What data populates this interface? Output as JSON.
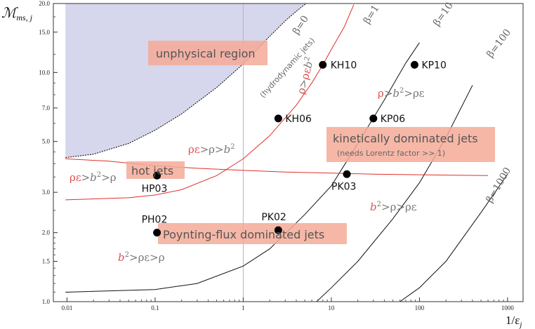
{
  "chart_data": {
    "type": "line",
    "title": "",
    "xlabel": "1/ε",
    "xlabel_sub": "j",
    "ylabel": "ℳ",
    "ylabel_sub": "ms, j",
    "xscale": "log",
    "yscale": "log",
    "xlim": [
      0.007,
      1500
    ],
    "ylim": [
      1.0,
      20.0
    ],
    "x_ticks": [
      "0.01",
      "0.1",
      "1",
      "10",
      "100",
      "1000"
    ],
    "y_ticks": [
      "1.0",
      "1.5",
      "2.0",
      "3.0",
      "5.0",
      "7.0",
      "10.0",
      "15.0",
      "20.0"
    ],
    "colors": {
      "unphysical_fill": "#d6d6ec",
      "red_curve": "#e0302a",
      "black_curve": "#111111",
      "label_box": "#f4aa98",
      "point": "#000000"
    },
    "series": [
      {
        "name": "β=0 (hydrodynamic jets)",
        "color": "#000000",
        "x": [
          0.0096,
          0.02,
          0.05,
          0.1,
          0.2,
          0.5,
          1,
          2,
          3,
          4,
          5,
          6
        ],
        "y": [
          4.25,
          4.4,
          4.9,
          5.6,
          6.6,
          8.6,
          10.9,
          14.4,
          16.8,
          18.5,
          19.8,
          20.5
        ]
      },
      {
        "name": "β=1",
        "color": "#e0302a",
        "x": [
          0.0096,
          0.05,
          0.1,
          0.2,
          0.5,
          1,
          2,
          4,
          6,
          8,
          10,
          14,
          18
        ],
        "y": [
          2.78,
          2.84,
          2.92,
          3.08,
          3.55,
          4.2,
          5.3,
          7.2,
          9.0,
          10.8,
          12.6,
          15.8,
          19.8
        ]
      },
      {
        "name": "β=10",
        "color": "#111111",
        "x": [
          0.0096,
          0.1,
          0.3,
          1,
          2,
          5,
          10,
          20,
          40,
          70,
          100
        ],
        "y": [
          1.1,
          1.13,
          1.2,
          1.43,
          1.7,
          2.4,
          3.2,
          4.9,
          7.6,
          11.0,
          13.5
        ]
      },
      {
        "name": "β=100",
        "color": "#111111",
        "x": [
          6.8,
          10,
          20,
          50,
          100,
          200,
          400
        ],
        "y": [
          1.0,
          1.15,
          1.5,
          2.3,
          3.3,
          5.2,
          8.8
        ]
      },
      {
        "name": "β=1000",
        "color": "#111111",
        "x": [
          60,
          100,
          200,
          500,
          1000
        ],
        "y": [
          1.0,
          1.15,
          1.5,
          2.45,
          3.6
        ]
      },
      {
        "name": "ρε = ρ boundary",
        "color": "#e0302a",
        "x": [
          0.0096,
          0.03,
          0.1,
          0.3,
          1,
          3,
          10,
          30,
          100,
          300,
          600
        ],
        "y": [
          4.2,
          4.1,
          3.92,
          3.82,
          3.74,
          3.68,
          3.64,
          3.6,
          3.58,
          3.56,
          3.55
        ]
      }
    ],
    "points": [
      {
        "name": "KH10",
        "x": 8.0,
        "y": 10.8
      },
      {
        "name": "KP10",
        "x": 88,
        "y": 10.8
      },
      {
        "name": "KH06",
        "x": 2.5,
        "y": 6.3
      },
      {
        "name": "KP06",
        "x": 30,
        "y": 6.3
      },
      {
        "name": "HP03",
        "x": 0.105,
        "y": 3.55
      },
      {
        "name": "PK03",
        "x": 15,
        "y": 3.6
      },
      {
        "name": "PH02",
        "x": 0.105,
        "y": 2.0
      },
      {
        "name": "PK02",
        "x": 2.5,
        "y": 2.05
      }
    ],
    "regions": [
      {
        "label": "unphysical region"
      },
      {
        "label": "kinetically dominated jets",
        "sublabel": "(needs Lorentz factor >> 1)"
      },
      {
        "label": "hot jets"
      },
      {
        "label": "Poynting-flux dominated jets"
      }
    ],
    "annotations": {
      "hydro": "(hydrodynamic jets)",
      "beta_labels": [
        "β=0",
        "β=1",
        "β=10",
        "β=100",
        "β=1000"
      ],
      "ineq": {
        "top": {
          "a": "ρ",
          "b": ">",
          "c": "ρε",
          "d": "b",
          "e": "2"
        },
        "mid": {
          "a": "ρ",
          "b": ">",
          "c": "b",
          "d": "2",
          "e": ">",
          "f": "ρε"
        },
        "hot_top": {
          "a": "ρε",
          "b": ">",
          "c": "ρ",
          "d": ">",
          "e": "b",
          "f": "2"
        },
        "hot_left": {
          "a": "ρε",
          "b": ">",
          "c": "b",
          "d": "2",
          "e": ">",
          "f": "ρ"
        },
        "right_low": {
          "a": "b",
          "b": "2",
          "c": ">",
          "d": "ρ",
          "e": ">",
          "f": "ρε"
        },
        "left_low": {
          "a": "b",
          "b": "2",
          "c": ">",
          "d": "ρε",
          "e": ">",
          "f": "ρ"
        }
      }
    }
  }
}
